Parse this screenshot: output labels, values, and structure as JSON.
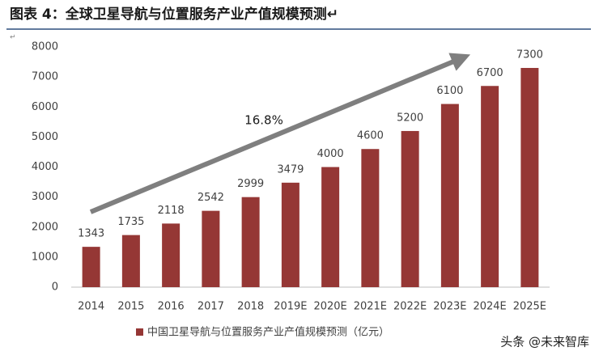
{
  "chart_data": {
    "type": "bar",
    "title": "图表 4：全球卫星导航与位置服务产业产值规模预测↵",
    "categories": [
      "2014",
      "2015",
      "2016",
      "2017",
      "2018",
      "2019E",
      "2020E",
      "2021E",
      "2022E",
      "2023E",
      "2024E",
      "2025E"
    ],
    "series": [
      {
        "name": "中国卫星导航与位置服务产业产值规模预测（亿元）",
        "color": "#953735",
        "values": [
          1343,
          1735,
          2118,
          2542,
          2999,
          3479,
          4000,
          4600,
          5200,
          6100,
          6700,
          7300
        ]
      }
    ],
    "ylim": [
      0,
      8000
    ],
    "yticks": [
      0,
      1000,
      2000,
      3000,
      4000,
      5000,
      6000,
      7000,
      8000
    ],
    "grid": false,
    "legend": "bottom",
    "annotation": "16.8%"
  },
  "paragraph_mark": "↵",
  "watermark": "头条 @未来智库"
}
